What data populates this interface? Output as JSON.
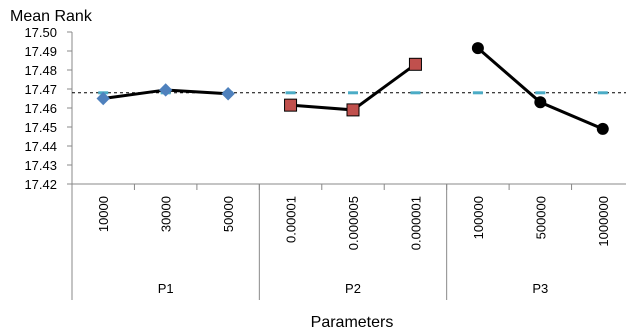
{
  "chart_data": {
    "type": "line",
    "title": "Mean Rank",
    "xlabel": "Parameters",
    "ylabel": "",
    "ylim": [
      17.42,
      17.5
    ],
    "yticks": [
      "17.42",
      "17.43",
      "17.44",
      "17.45",
      "17.46",
      "17.47",
      "17.48",
      "17.49",
      "17.50"
    ],
    "reference_value": 17.468,
    "grid": false,
    "legend": "none",
    "groups": [
      {
        "name": "P1",
        "categories": [
          "10000",
          "30000",
          "50000"
        ],
        "values": [
          17.465,
          17.4695,
          17.4675
        ],
        "marker": "diamond",
        "color": "#4F81BD",
        "connected": true
      },
      {
        "name": "P2",
        "categories": [
          "0.00001",
          "0.000005",
          "0.000001"
        ],
        "values": [
          17.4615,
          17.459,
          17.483
        ],
        "marker": "square",
        "color": "#C0504D",
        "connected": true
      },
      {
        "name": "P3",
        "categories": [
          "100000",
          "500000",
          "1000000"
        ],
        "values": [
          17.4915,
          17.463,
          17.449
        ],
        "marker": "circle",
        "color": "#000000",
        "connected": true
      }
    ]
  }
}
